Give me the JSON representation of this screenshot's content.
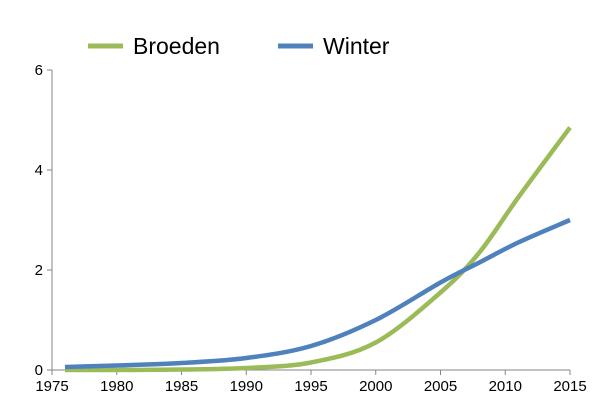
{
  "chart_data": {
    "type": "line",
    "title": "",
    "xlabel": "",
    "ylabel": "",
    "xlim": [
      1975,
      2015
    ],
    "ylim": [
      0,
      6
    ],
    "x_ticks": [
      1975,
      1980,
      1985,
      1990,
      1995,
      2000,
      2005,
      2010,
      2015
    ],
    "y_ticks": [
      0,
      2,
      4,
      6
    ],
    "grid": false,
    "legend_position": "top",
    "x": [
      1976,
      1980,
      1985,
      1990,
      1995,
      2000,
      2005,
      2008,
      2011,
      2015
    ],
    "series": [
      {
        "name": "Broeden",
        "color": "#9bbb59",
        "values": [
          0.0,
          0.0,
          0.01,
          0.04,
          0.15,
          0.55,
          1.55,
          2.35,
          3.45,
          4.85
        ]
      },
      {
        "name": "Winter",
        "color": "#4f81bd",
        "values": [
          0.06,
          0.09,
          0.14,
          0.24,
          0.48,
          1.0,
          1.75,
          2.15,
          2.55,
          3.0
        ]
      }
    ]
  }
}
